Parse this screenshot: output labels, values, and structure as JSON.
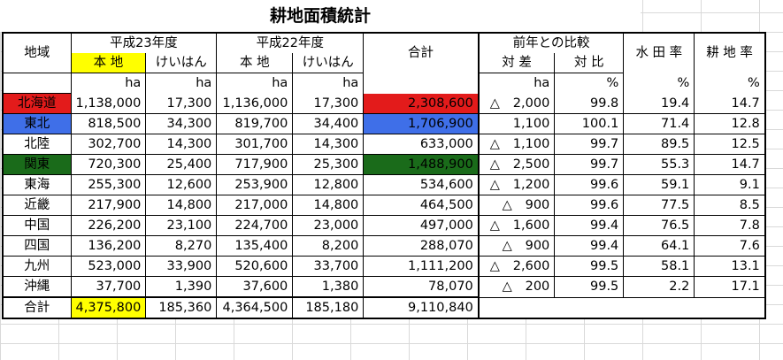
{
  "title": "耕地面積統計",
  "header": {
    "region": "地域",
    "h23": "平成23年度",
    "h22": "平成22年度",
    "total": "合計",
    "compare": "前年との比較",
    "paddy_rate": "水 田 率",
    "cultivated_rate": "耕 地 率",
    "honchi": "本 地",
    "keihan": "けいはん",
    "diff": "対 差",
    "ratio": "対 比"
  },
  "units": {
    "h23_honchi": "ha",
    "h23_keihan": "ha",
    "h22_honchi": "ha",
    "h22_keihan": "ha",
    "diff": "ha",
    "ratio": "%",
    "paddy": "%",
    "cultivated": "%"
  },
  "rows": [
    {
      "region": "北海道",
      "h23_honchi": "1,138,000",
      "h23_keihan": "17,300",
      "h22_honchi": "1,136,000",
      "h22_keihan": "17,300",
      "total": "2,308,600",
      "tri": "△",
      "diff": "2,000",
      "ratio": "99.8",
      "paddy": "19.4",
      "cultivated": "14.7"
    },
    {
      "region": "東北",
      "h23_honchi": "818,500",
      "h23_keihan": "34,300",
      "h22_honchi": "819,700",
      "h22_keihan": "34,400",
      "total": "1,706,900",
      "tri": "",
      "diff": "1,100",
      "ratio": "100.1",
      "paddy": "71.4",
      "cultivated": "12.8"
    },
    {
      "region": "北陸",
      "h23_honchi": "302,700",
      "h23_keihan": "14,300",
      "h22_honchi": "301,700",
      "h22_keihan": "14,300",
      "total": "633,000",
      "tri": "△",
      "diff": "1,100",
      "ratio": "99.7",
      "paddy": "89.5",
      "cultivated": "12.5"
    },
    {
      "region": "関東",
      "h23_honchi": "720,300",
      "h23_keihan": "25,400",
      "h22_honchi": "717,900",
      "h22_keihan": "25,300",
      "total": "1,488,900",
      "tri": "△",
      "diff": "2,500",
      "ratio": "99.7",
      "paddy": "55.3",
      "cultivated": "14.7"
    },
    {
      "region": "東海",
      "h23_honchi": "255,300",
      "h23_keihan": "12,600",
      "h22_honchi": "253,900",
      "h22_keihan": "12,800",
      "total": "534,600",
      "tri": "△",
      "diff": "1,200",
      "ratio": "99.6",
      "paddy": "59.1",
      "cultivated": "9.1"
    },
    {
      "region": "近畿",
      "h23_honchi": "217,900",
      "h23_keihan": "14,800",
      "h22_honchi": "217,000",
      "h22_keihan": "14,800",
      "total": "464,500",
      "tri": "△",
      "diff": "900",
      "ratio": "99.6",
      "paddy": "77.5",
      "cultivated": "8.5"
    },
    {
      "region": "中国",
      "h23_honchi": "226,200",
      "h23_keihan": "23,100",
      "h22_honchi": "224,700",
      "h22_keihan": "23,000",
      "total": "497,000",
      "tri": "△",
      "diff": "1,600",
      "ratio": "99.4",
      "paddy": "76.5",
      "cultivated": "7.8"
    },
    {
      "region": "四国",
      "h23_honchi": "136,200",
      "h23_keihan": "8,270",
      "h22_honchi": "135,400",
      "h22_keihan": "8,200",
      "total": "288,070",
      "tri": "△",
      "diff": "900",
      "ratio": "99.4",
      "paddy": "64.1",
      "cultivated": "7.6"
    },
    {
      "region": "九州",
      "h23_honchi": "523,000",
      "h23_keihan": "33,900",
      "h22_honchi": "520,600",
      "h22_keihan": "33,700",
      "total": "1,111,200",
      "tri": "△",
      "diff": "2,600",
      "ratio": "99.5",
      "paddy": "58.1",
      "cultivated": "13.1"
    },
    {
      "region": "沖縄",
      "h23_honchi": "37,700",
      "h23_keihan": "1,390",
      "h22_honchi": "37,600",
      "h22_keihan": "1,380",
      "total": "78,070",
      "tri": "△",
      "diff": "200",
      "ratio": "99.5",
      "paddy": "2.2",
      "cultivated": "17.1"
    }
  ],
  "total_row": {
    "label": "合計",
    "h23_honchi": "4,375,800",
    "h23_keihan": "185,360",
    "h22_honchi": "4,364,500",
    "h22_keihan": "185,180",
    "total": "9,110,840"
  },
  "colors": {
    "highlight_yellow": "#ffff00",
    "hokkaido_red": "#e31b1b",
    "tohoku_blue": "#3f6fe8",
    "kanto_green": "#1a6b1a"
  }
}
